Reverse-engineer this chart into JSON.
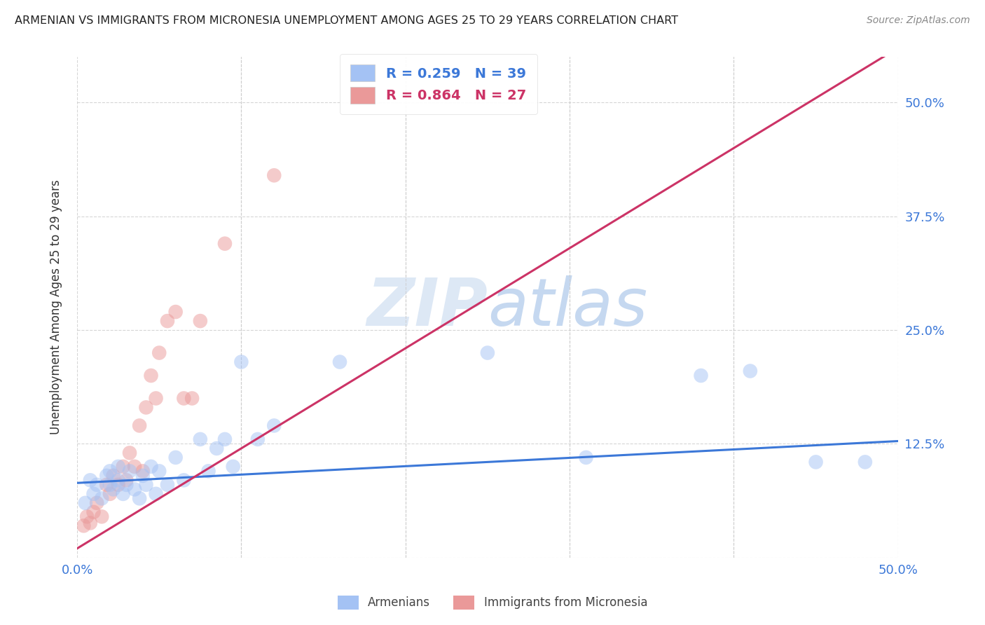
{
  "title": "ARMENIAN VS IMMIGRANTS FROM MICRONESIA UNEMPLOYMENT AMONG AGES 25 TO 29 YEARS CORRELATION CHART",
  "source": "Source: ZipAtlas.com",
  "ylabel": "Unemployment Among Ages 25 to 29 years",
  "xlim": [
    0.0,
    0.5
  ],
  "ylim": [
    0.0,
    0.55
  ],
  "xticks": [
    0.0,
    0.1,
    0.2,
    0.3,
    0.4,
    0.5
  ],
  "yticks": [
    0.0,
    0.125,
    0.25,
    0.375,
    0.5
  ],
  "ytick_labels_right": [
    "",
    "12.5%",
    "25.0%",
    "37.5%",
    "50.0%"
  ],
  "xtick_labels": [
    "0.0%",
    "",
    "",
    "",
    "",
    "50.0%"
  ],
  "legend_r_blue": "0.259",
  "legend_n_blue": "39",
  "legend_r_pink": "0.864",
  "legend_n_pink": "27",
  "blue_color": "#a4c2f4",
  "pink_color": "#ea9999",
  "blue_line_color": "#3c78d8",
  "pink_line_color": "#cc3366",
  "watermark_text_color": "#dde8f5",
  "grid_color": "#cccccc",
  "blue_scatter_x": [
    0.005,
    0.008,
    0.01,
    0.012,
    0.015,
    0.018,
    0.02,
    0.02,
    0.022,
    0.025,
    0.025,
    0.028,
    0.03,
    0.032,
    0.035,
    0.038,
    0.04,
    0.042,
    0.045,
    0.048,
    0.05,
    0.055,
    0.06,
    0.065,
    0.075,
    0.08,
    0.085,
    0.09,
    0.095,
    0.1,
    0.11,
    0.12,
    0.16,
    0.25,
    0.31,
    0.38,
    0.41,
    0.45,
    0.48
  ],
  "blue_scatter_y": [
    0.06,
    0.085,
    0.07,
    0.08,
    0.065,
    0.09,
    0.08,
    0.095,
    0.075,
    0.085,
    0.1,
    0.07,
    0.08,
    0.095,
    0.075,
    0.065,
    0.09,
    0.08,
    0.1,
    0.07,
    0.095,
    0.08,
    0.11,
    0.085,
    0.13,
    0.095,
    0.12,
    0.13,
    0.1,
    0.215,
    0.13,
    0.145,
    0.215,
    0.225,
    0.11,
    0.2,
    0.205,
    0.105,
    0.105
  ],
  "pink_scatter_x": [
    0.004,
    0.006,
    0.008,
    0.01,
    0.012,
    0.015,
    0.018,
    0.02,
    0.022,
    0.025,
    0.028,
    0.03,
    0.032,
    0.035,
    0.038,
    0.04,
    0.042,
    0.045,
    0.048,
    0.05,
    0.055,
    0.06,
    0.065,
    0.07,
    0.075,
    0.09,
    0.12
  ],
  "pink_scatter_y": [
    0.035,
    0.045,
    0.038,
    0.05,
    0.06,
    0.045,
    0.08,
    0.07,
    0.09,
    0.08,
    0.1,
    0.085,
    0.115,
    0.1,
    0.145,
    0.095,
    0.165,
    0.2,
    0.175,
    0.225,
    0.26,
    0.27,
    0.175,
    0.175,
    0.26,
    0.345,
    0.42
  ],
  "blue_line_x0": 0.0,
  "blue_line_y0": 0.082,
  "blue_line_x1": 0.5,
  "blue_line_y1": 0.128,
  "pink_line_x0": 0.0,
  "pink_line_y0": 0.01,
  "pink_line_x1": 0.5,
  "pink_line_y1": 0.56
}
